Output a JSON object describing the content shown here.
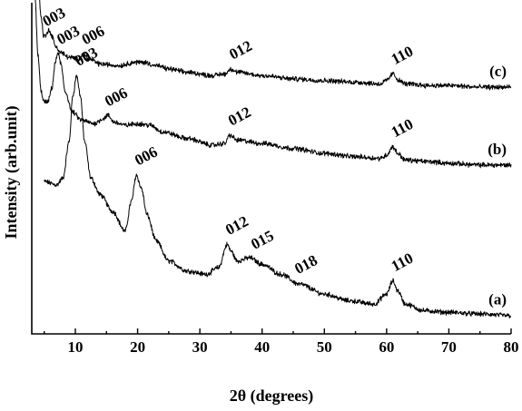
{
  "chart_data": {
    "type": "line",
    "xlabel": "2θ (degrees)",
    "ylabel": "Intensity (arb.unit)",
    "xlim": [
      3,
      80
    ],
    "x_ticks": [
      10,
      20,
      30,
      40,
      50,
      60,
      70,
      80
    ],
    "y_ticks_shown": false,
    "grid": false,
    "legend": "none",
    "series": [
      {
        "name": "(a)",
        "start_x": 5,
        "baseline": 0.05,
        "points": [
          [
            5,
            0.46
          ],
          [
            7,
            0.45
          ],
          [
            8,
            0.47
          ],
          [
            9,
            0.58
          ],
          [
            9.6,
            0.72
          ],
          [
            10.2,
            0.78
          ],
          [
            10.8,
            0.72
          ],
          [
            11.5,
            0.58
          ],
          [
            12.5,
            0.47
          ],
          [
            14,
            0.42
          ],
          [
            16,
            0.37
          ],
          [
            18,
            0.31
          ],
          [
            19,
            0.4
          ],
          [
            19.8,
            0.48
          ],
          [
            20.6,
            0.44
          ],
          [
            21.5,
            0.36
          ],
          [
            23,
            0.28
          ],
          [
            25,
            0.22
          ],
          [
            28,
            0.19
          ],
          [
            31,
            0.18
          ],
          [
            33,
            0.2
          ],
          [
            34.4,
            0.27
          ],
          [
            35,
            0.25
          ],
          [
            36,
            0.22
          ],
          [
            38,
            0.23
          ],
          [
            40,
            0.21
          ],
          [
            43,
            0.18
          ],
          [
            46,
            0.15
          ],
          [
            50,
            0.12
          ],
          [
            54,
            0.1
          ],
          [
            58,
            0.09
          ],
          [
            60,
            0.12
          ],
          [
            61,
            0.16
          ],
          [
            61.8,
            0.13
          ],
          [
            63,
            0.09
          ],
          [
            66,
            0.07
          ],
          [
            70,
            0.065
          ],
          [
            75,
            0.06
          ],
          [
            80,
            0.055
          ]
        ],
        "peaks": [
          {
            "label": "003",
            "x": 10.2
          },
          {
            "label": "006",
            "x": 19.8
          },
          {
            "label": "012",
            "x": 34.4
          },
          {
            "label": "015",
            "x": 38.5
          },
          {
            "label": "018",
            "x": 45.5
          },
          {
            "label": "110",
            "x": 61
          }
        ]
      },
      {
        "name": "(b)",
        "start_x": 3.5,
        "baseline": 0.3,
        "points": [
          [
            3.5,
            1.02
          ],
          [
            4,
            0.84
          ],
          [
            4.5,
            0.73
          ],
          [
            5,
            0.7
          ],
          [
            5.6,
            0.7
          ],
          [
            6.2,
            0.74
          ],
          [
            6.8,
            0.82
          ],
          [
            7.2,
            0.85
          ],
          [
            7.6,
            0.82
          ],
          [
            8.4,
            0.73
          ],
          [
            9.5,
            0.67
          ],
          [
            11,
            0.645
          ],
          [
            13,
            0.635
          ],
          [
            14.5,
            0.65
          ],
          [
            15.2,
            0.66
          ],
          [
            16.2,
            0.64
          ],
          [
            18,
            0.63
          ],
          [
            20,
            0.635
          ],
          [
            22,
            0.63
          ],
          [
            24,
            0.61
          ],
          [
            28,
            0.59
          ],
          [
            32,
            0.57
          ],
          [
            34,
            0.575
          ],
          [
            34.8,
            0.6
          ],
          [
            36,
            0.585
          ],
          [
            40,
            0.575
          ],
          [
            45,
            0.56
          ],
          [
            50,
            0.545
          ],
          [
            55,
            0.535
          ],
          [
            59,
            0.53
          ],
          [
            60,
            0.54
          ],
          [
            61,
            0.565
          ],
          [
            61.8,
            0.545
          ],
          [
            63,
            0.525
          ],
          [
            67,
            0.52
          ],
          [
            70,
            0.515
          ],
          [
            75,
            0.51
          ],
          [
            80,
            0.51
          ]
        ],
        "peaks": [
          {
            "label": "003",
            "x": 7.3
          },
          {
            "label": "006",
            "x": 15
          },
          {
            "label": "012",
            "x": 34.8
          },
          {
            "label": "110",
            "x": 61
          }
        ]
      },
      {
        "name": "(c)",
        "start_x": 3.5,
        "baseline": 0.58,
        "points": [
          [
            3.5,
            1.12
          ],
          [
            4,
            1.06
          ],
          [
            4.5,
            0.96
          ],
          [
            4.9,
            0.9
          ],
          [
            5.3,
            0.9
          ],
          [
            5.7,
            0.92
          ],
          [
            6.2,
            0.9
          ],
          [
            6.8,
            0.87
          ],
          [
            7.6,
            0.85
          ],
          [
            9,
            0.835
          ],
          [
            10.5,
            0.83
          ],
          [
            11.3,
            0.845
          ],
          [
            12.2,
            0.83
          ],
          [
            14,
            0.815
          ],
          [
            17,
            0.81
          ],
          [
            19.5,
            0.82
          ],
          [
            21,
            0.82
          ],
          [
            23,
            0.81
          ],
          [
            25,
            0.8
          ],
          [
            28,
            0.79
          ],
          [
            32,
            0.78
          ],
          [
            34,
            0.785
          ],
          [
            35,
            0.8
          ],
          [
            36,
            0.79
          ],
          [
            40,
            0.78
          ],
          [
            45,
            0.77
          ],
          [
            50,
            0.765
          ],
          [
            55,
            0.76
          ],
          [
            59,
            0.755
          ],
          [
            60,
            0.765
          ],
          [
            61,
            0.785
          ],
          [
            62,
            0.765
          ],
          [
            63,
            0.755
          ],
          [
            67,
            0.75
          ],
          [
            70,
            0.75
          ],
          [
            75,
            0.745
          ],
          [
            80,
            0.745
          ]
        ],
        "peaks": [
          {
            "label": "003",
            "x": 5
          },
          {
            "label": "006",
            "x": 11.3
          },
          {
            "label": "012",
            "x": 35
          },
          {
            "label": "110",
            "x": 61
          }
        ]
      }
    ]
  }
}
